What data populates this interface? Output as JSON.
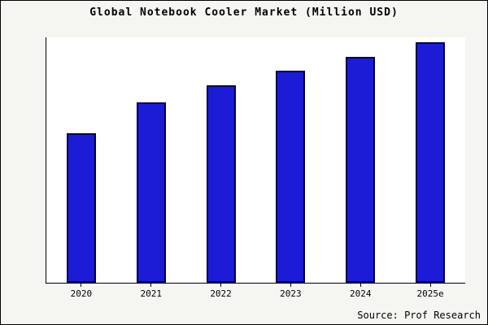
{
  "title": "Global Notebook Cooler Market (Million USD)",
  "source": "Source: Prof Research",
  "colors": {
    "bar_fill": "#1c1cd6",
    "bar_border": "#00004a",
    "axis": "#000000",
    "outer_background": "#f5f5f2",
    "plot_background": "#ffffff"
  },
  "chart_data": {
    "type": "bar",
    "title": "Global Notebook Cooler Market (Million USD)",
    "categories": [
      "2020",
      "2021",
      "2022",
      "2023",
      "2024",
      "2025e"
    ],
    "values": [
      62,
      75,
      82,
      88,
      94,
      100
    ],
    "xlabel": "",
    "ylabel": "",
    "ylim": [
      0,
      102
    ],
    "grid": false,
    "legend": false,
    "y_axis_labels_visible": false
  }
}
